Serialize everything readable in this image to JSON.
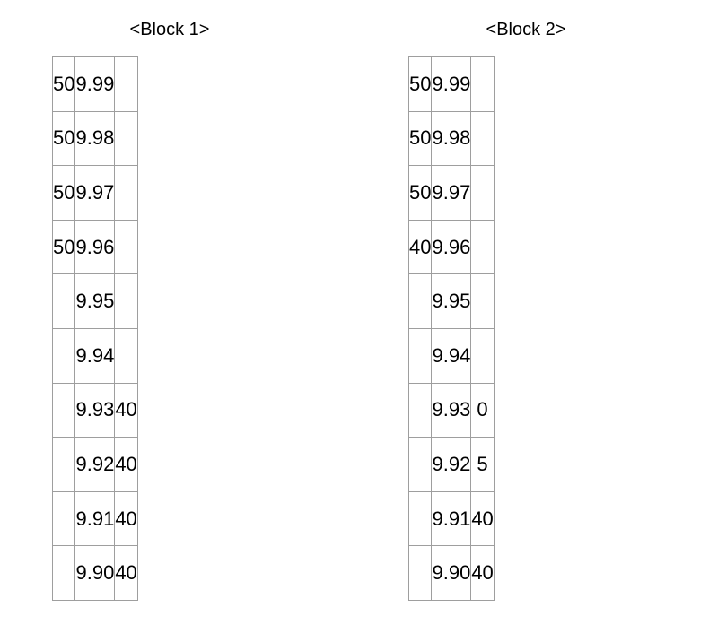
{
  "blocks": [
    {
      "title": "<Block 1>",
      "rows": [
        [
          "50",
          "9.99",
          ""
        ],
        [
          "50",
          "9.98",
          ""
        ],
        [
          "50",
          "9.97",
          ""
        ],
        [
          "50",
          "9.96",
          ""
        ],
        [
          "",
          "9.95",
          ""
        ],
        [
          "",
          "9.94",
          ""
        ],
        [
          "",
          "9.93",
          "40"
        ],
        [
          "",
          "9.92",
          "40"
        ],
        [
          "",
          "9.91",
          "40"
        ],
        [
          "",
          "9.90",
          "40"
        ]
      ]
    },
    {
      "title": "<Block 2>",
      "rows": [
        [
          "50",
          "9.99",
          ""
        ],
        [
          "50",
          "9.98",
          ""
        ],
        [
          "50",
          "9.97",
          ""
        ],
        [
          "40",
          "9.96",
          ""
        ],
        [
          "",
          "9.95",
          ""
        ],
        [
          "",
          "9.94",
          ""
        ],
        [
          "",
          "9.93",
          "0"
        ],
        [
          "",
          "9.92",
          "5"
        ],
        [
          "",
          "9.91",
          "40"
        ],
        [
          "",
          "9.90",
          "40"
        ]
      ]
    }
  ]
}
